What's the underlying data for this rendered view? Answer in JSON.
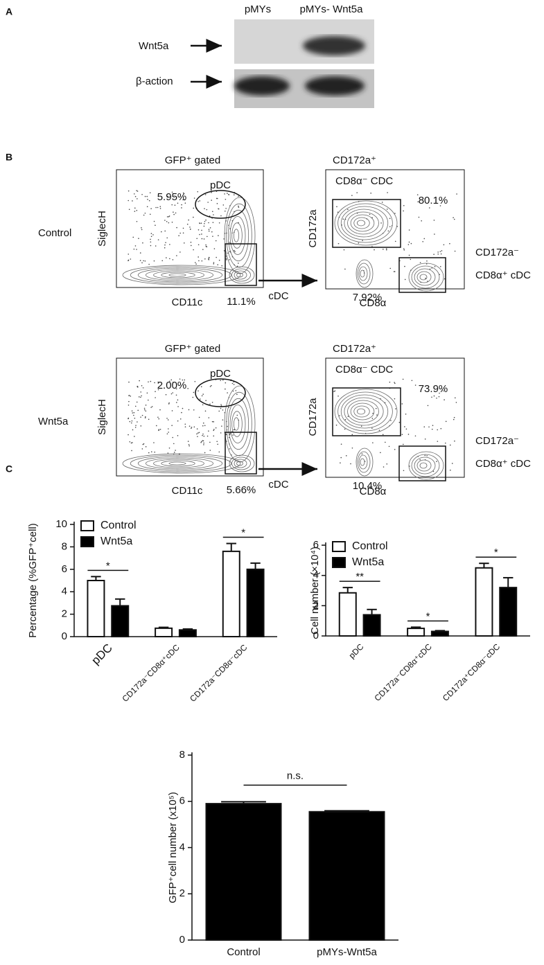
{
  "panel_a": {
    "label": "A",
    "columns": [
      "pMYs",
      "pMYs- Wnt5a"
    ],
    "rows": [
      "Wnt5a",
      "β-action"
    ]
  },
  "panel_b": {
    "label": "B",
    "rows": [
      {
        "name": "Control",
        "gate_title": "GFP⁺ gated",
        "x_label": "CD11c",
        "y_label": "SiglecH",
        "pdc_label": "pDC",
        "pdc_pct": "5.95%",
        "cdc_pct": "11.1%",
        "arrow_label": "cDC",
        "sub_title1": "CD172a⁺",
        "sub_title2": "CD8α⁻ CDC",
        "sub_pct1": "80.1%",
        "sub_pct2": "7.92%",
        "sub_x": "CD8α",
        "sub_y": "CD172a",
        "side_label1": "CD172a⁻",
        "side_label2": "CD8α⁺ cDC"
      },
      {
        "name": "Wnt5a",
        "gate_title": "GFP⁺ gated",
        "x_label": "CD11c",
        "y_label": "SiglecH",
        "pdc_label": "pDC",
        "pdc_pct": "2.00%",
        "cdc_pct": "5.66%",
        "arrow_label": "cDC",
        "sub_title1": "CD172a⁺",
        "sub_title2": "CD8α⁻ CDC",
        "sub_pct1": "73.9%",
        "sub_pct2": "10.4%",
        "sub_x": "CD8α",
        "sub_y": "CD172a",
        "side_label1": "CD172a⁻",
        "side_label2": "CD8α⁺ cDC"
      }
    ]
  },
  "panel_c": {
    "label": "C"
  },
  "chart_data": [
    {
      "type": "bar",
      "y_label": "Percentage (%GFP⁺cell)",
      "categories": [
        "pDC",
        "CD172a⁻CD8α⁺cDC",
        "CD172a⁻CD8α⁻cDC"
      ],
      "series": [
        {
          "name": "Control",
          "color": "#ffffff",
          "values": [
            5.0,
            0.75,
            7.6
          ],
          "errors": [
            0.35,
            0.08,
            0.7
          ]
        },
        {
          "name": "Wnt5a",
          "color": "#000000",
          "values": [
            2.75,
            0.6,
            6.0
          ],
          "errors": [
            0.6,
            0.08,
            0.55
          ]
        }
      ],
      "significance": [
        "*",
        null,
        "*"
      ],
      "ylim": [
        0,
        10
      ],
      "yticks": [
        0,
        2,
        4,
        6,
        8,
        10
      ],
      "legend": "top-left"
    },
    {
      "type": "bar",
      "y_label": "Cell number (×10⁴)",
      "categories": [
        "pDC",
        "CD172a⁻CD8α⁺cDC",
        "CD172a⁺CD8α⁻cDC"
      ],
      "series": [
        {
          "name": "Control",
          "color": "#ffffff",
          "values": [
            2.85,
            0.5,
            4.5
          ],
          "errors": [
            0.35,
            0.08,
            0.3
          ]
        },
        {
          "name": "Wnt5a",
          "color": "#000000",
          "values": [
            1.4,
            0.3,
            3.2
          ],
          "errors": [
            0.35,
            0.05,
            0.65
          ]
        }
      ],
      "significance": [
        "**",
        "*",
        "*"
      ],
      "ylim": [
        0,
        6
      ],
      "yticks": [
        0,
        2,
        4,
        6
      ],
      "legend": "top-left"
    },
    {
      "type": "bar",
      "y_label": "GFP⁺cell number (x10⁵)",
      "categories": [
        "Control",
        "pMYs-Wnt5a"
      ],
      "values": [
        5.9,
        5.55
      ],
      "errors": [
        0.08,
        0.04
      ],
      "color": "#000000",
      "annotation": "n.s.",
      "ylim": [
        0,
        8
      ],
      "yticks": [
        0,
        2,
        4,
        6,
        8
      ]
    }
  ]
}
